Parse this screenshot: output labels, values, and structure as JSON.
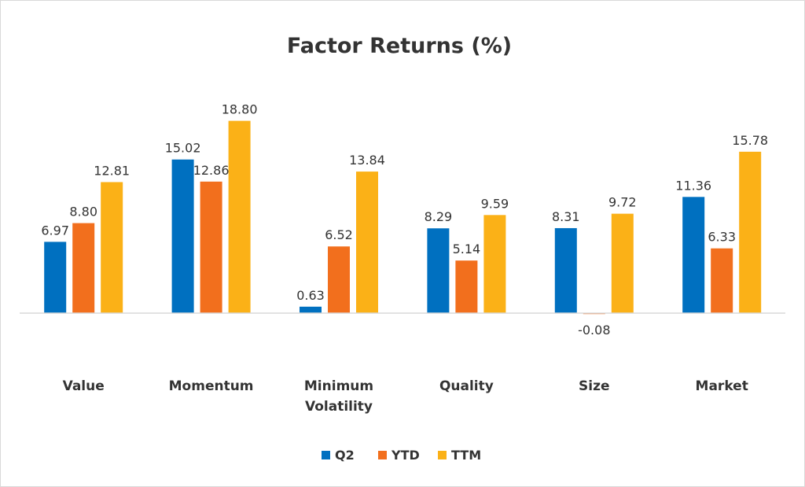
{
  "chart_data": {
    "type": "bar",
    "title": "Factor Returns (%)",
    "categories": [
      [
        "Value"
      ],
      [
        "Momentum"
      ],
      [
        "Minimum",
        "Volatility"
      ],
      [
        "Quality"
      ],
      [
        "Size"
      ],
      [
        "Market"
      ]
    ],
    "series": [
      {
        "name": "Q2",
        "color": "#0070C0",
        "values": [
          6.97,
          15.02,
          0.63,
          8.29,
          8.31,
          11.36
        ],
        "labels": [
          "6.97",
          "15.02",
          "0.63",
          "8.29",
          "8.31",
          "11.36"
        ]
      },
      {
        "name": "YTD",
        "color": "#F26F1D",
        "values": [
          8.8,
          12.86,
          6.52,
          5.14,
          -0.08,
          6.33
        ],
        "labels": [
          "8.80",
          "12.86",
          "6.52",
          "5.14",
          "-0.08",
          "6.33"
        ]
      },
      {
        "name": "TTM",
        "color": "#FBB117",
        "values": [
          12.81,
          18.8,
          13.84,
          9.59,
          9.72,
          15.78
        ],
        "labels": [
          "12.81",
          "18.80",
          "13.84",
          "9.59",
          "9.72",
          "15.78"
        ]
      }
    ],
    "ylim": [
      -2,
      20
    ],
    "grid": false,
    "legend_position": "bottom"
  }
}
